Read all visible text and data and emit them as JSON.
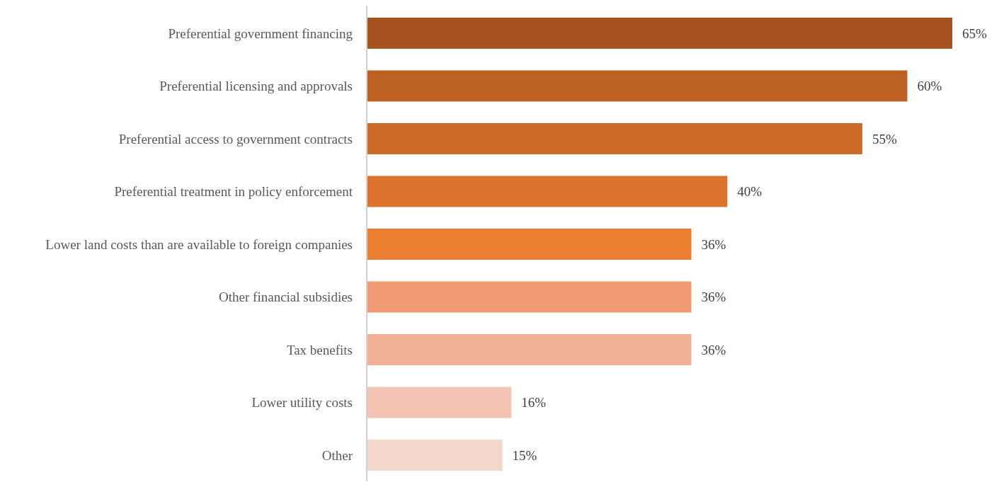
{
  "chart_data": {
    "type": "bar",
    "orientation": "horizontal",
    "categories": [
      "Preferential government financing",
      "Preferential licensing and approvals",
      "Preferential access to government contracts",
      "Preferential treatment in policy enforcement",
      "Lower land costs than are available to foreign companies",
      "Other financial subsidies",
      "Tax benefits",
      "Lower utility costs",
      "Other"
    ],
    "values": [
      65,
      60,
      55,
      40,
      36,
      36,
      36,
      16,
      15
    ],
    "colors": [
      "#a5521f",
      "#bd6124",
      "#cc6b2a",
      "#dd742e",
      "#ec7e32",
      "#ef9a72",
      "#f2b096",
      "#f4c4b2",
      "#f5d6cb"
    ],
    "value_labels": [
      "65%",
      "60%",
      "55%",
      "40%",
      "36%",
      "36%",
      "36%",
      "16%",
      "15%"
    ],
    "tick_labels": "y"
  }
}
